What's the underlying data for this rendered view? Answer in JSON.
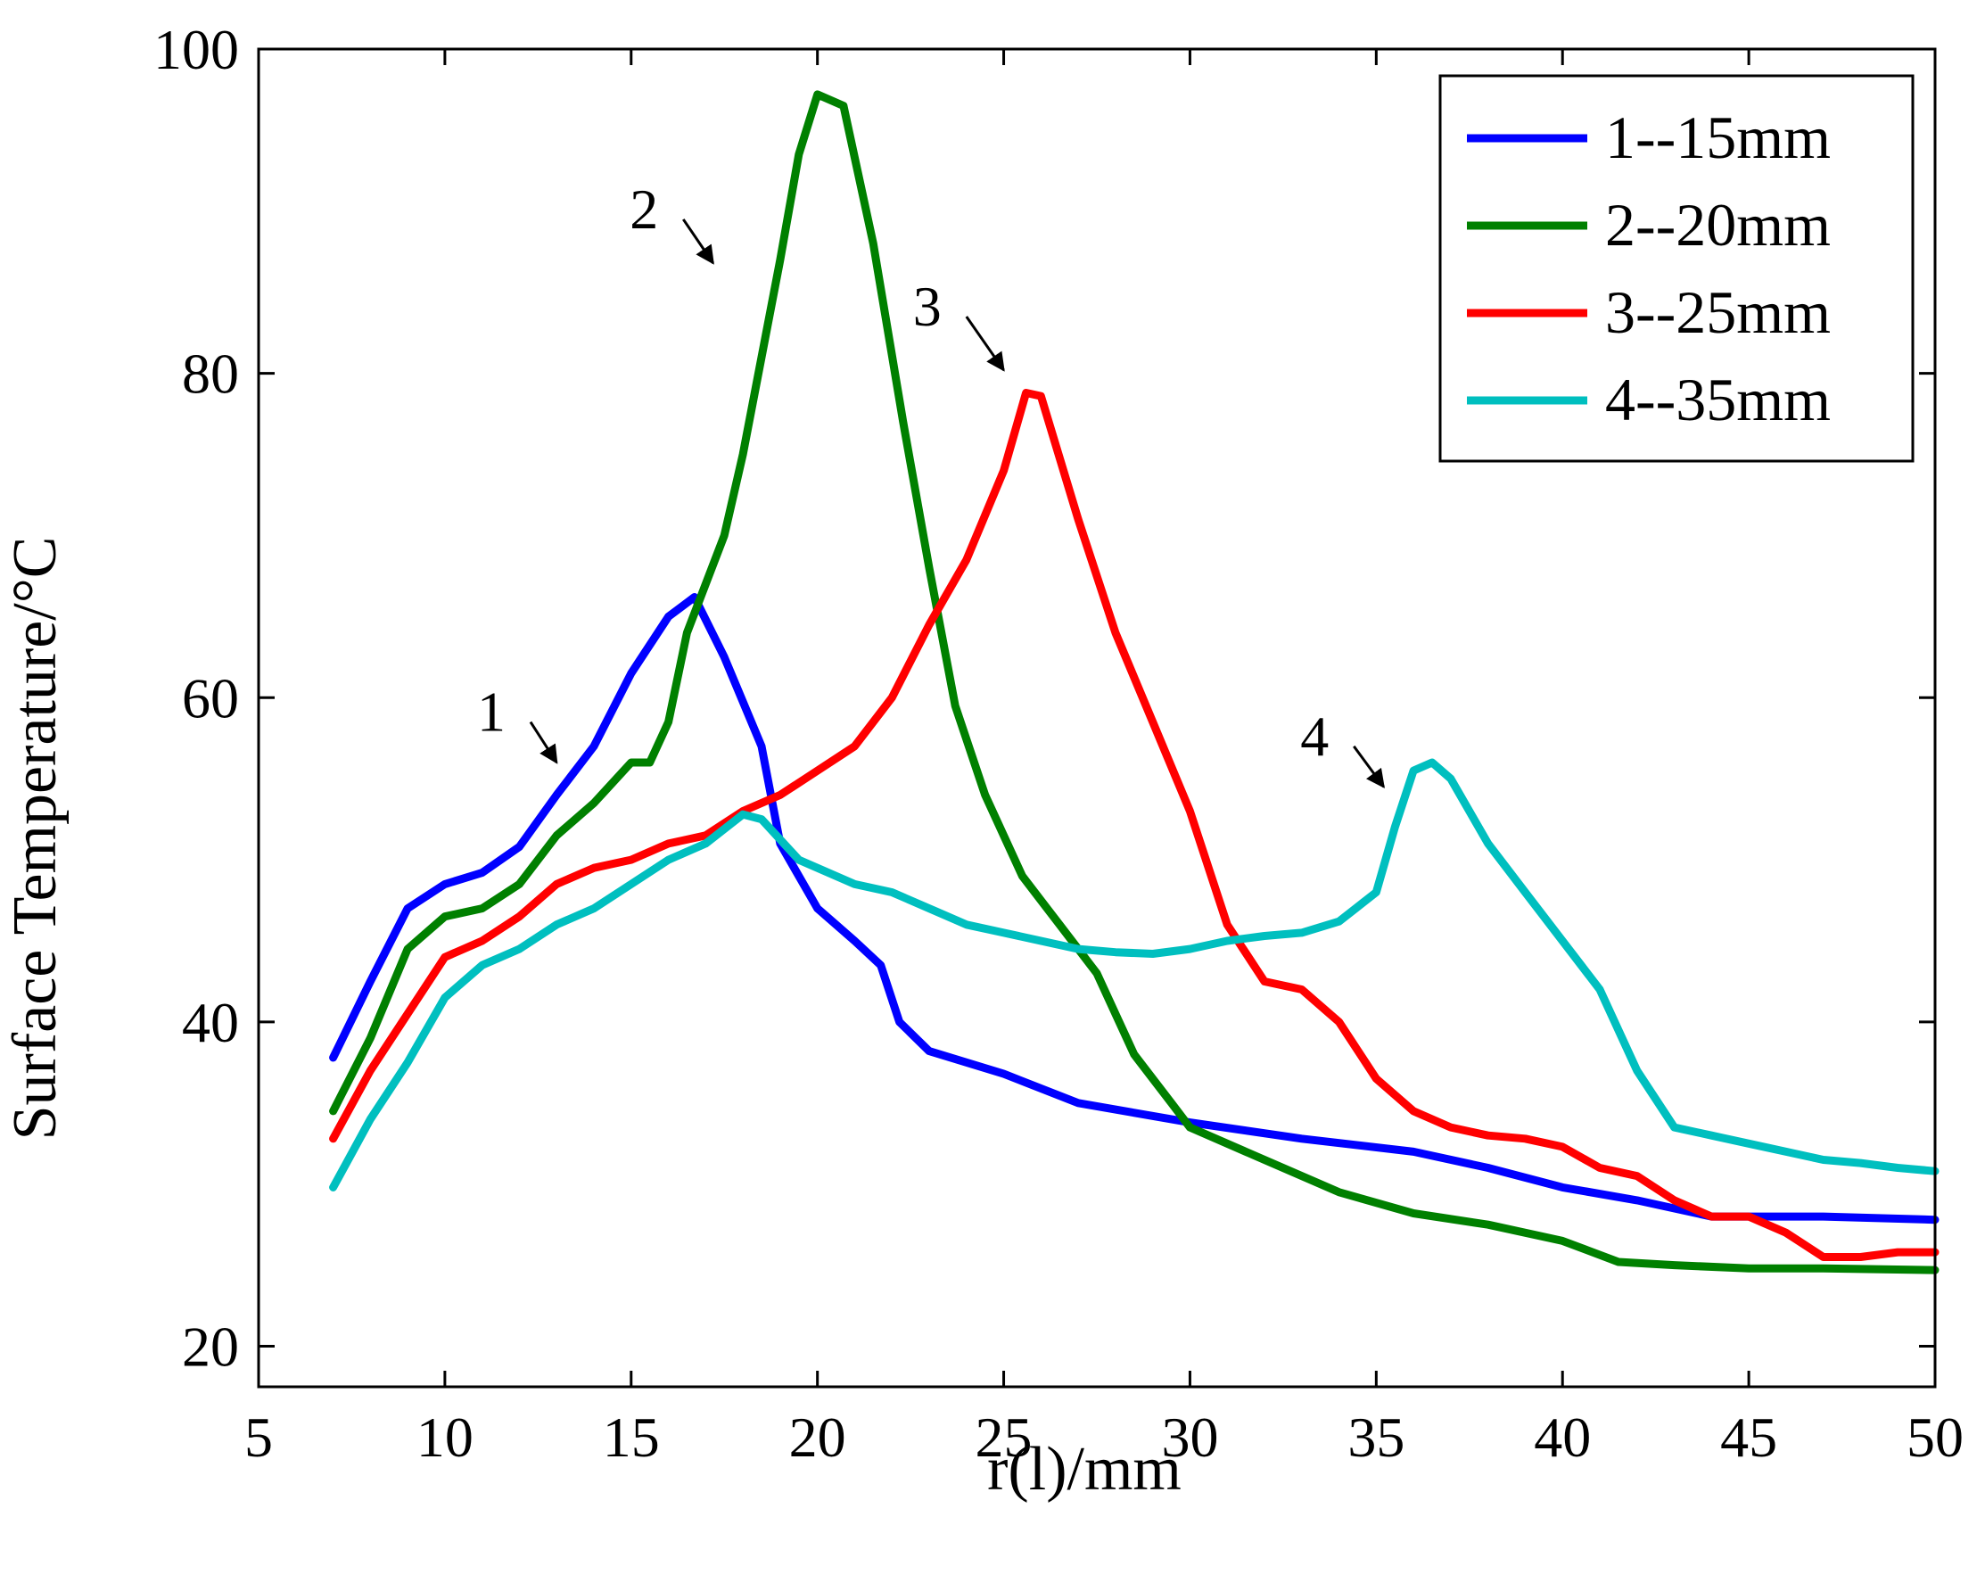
{
  "chart_data": {
    "type": "line",
    "title": "",
    "xlabel": "r(l)/mm",
    "ylabel": "Surface Temperature/°C",
    "xlim": [
      5,
      50
    ],
    "ylim": [
      17.5,
      100
    ],
    "xticks": [
      5,
      10,
      15,
      20,
      25,
      30,
      35,
      40,
      45,
      50
    ],
    "yticks": [
      20,
      40,
      60,
      80,
      100
    ],
    "grid": false,
    "legend_position": "top-right",
    "series": [
      {
        "name": "1--15mm",
        "color": "#0000ff",
        "points": [
          [
            7,
            37.8
          ],
          [
            8,
            42.5
          ],
          [
            9,
            47
          ],
          [
            10,
            48.5
          ],
          [
            11,
            49.2
          ],
          [
            12,
            50.8
          ],
          [
            13,
            54
          ],
          [
            14,
            57
          ],
          [
            15,
            61.5
          ],
          [
            16,
            65
          ],
          [
            16.7,
            66.2
          ],
          [
            17.5,
            62.5
          ],
          [
            18.5,
            57
          ],
          [
            19,
            51
          ],
          [
            20,
            47
          ],
          [
            21,
            45
          ],
          [
            21.7,
            43.5
          ],
          [
            22.2,
            40
          ],
          [
            23,
            38.2
          ],
          [
            25,
            36.8
          ],
          [
            27,
            35
          ],
          [
            30,
            33.8
          ],
          [
            33,
            32.8
          ],
          [
            36,
            32
          ],
          [
            38,
            31
          ],
          [
            40,
            29.8
          ],
          [
            42,
            29
          ],
          [
            44,
            28
          ],
          [
            47,
            28
          ],
          [
            50,
            27.8
          ]
        ]
      },
      {
        "name": "2--20mm",
        "color": "#008000",
        "points": [
          [
            7,
            34.5
          ],
          [
            8,
            39
          ],
          [
            9,
            44.5
          ],
          [
            10,
            46.5
          ],
          [
            11,
            47
          ],
          [
            12,
            48.5
          ],
          [
            13,
            51.5
          ],
          [
            14,
            53.5
          ],
          [
            15,
            56
          ],
          [
            15.5,
            56
          ],
          [
            16,
            58.5
          ],
          [
            16.5,
            64
          ],
          [
            17.5,
            70
          ],
          [
            18,
            75
          ],
          [
            18.5,
            81
          ],
          [
            19,
            87
          ],
          [
            19.5,
            93.5
          ],
          [
            20,
            97.2
          ],
          [
            20.7,
            96.5
          ],
          [
            21.5,
            88
          ],
          [
            22.3,
            77
          ],
          [
            23,
            68
          ],
          [
            23.7,
            59.5
          ],
          [
            24.5,
            54
          ],
          [
            25.5,
            49
          ],
          [
            26.5,
            46
          ],
          [
            27.5,
            43
          ],
          [
            28.5,
            38
          ],
          [
            29.5,
            35
          ],
          [
            30,
            33.5
          ],
          [
            32,
            31.5
          ],
          [
            34,
            29.5
          ],
          [
            36,
            28.2
          ],
          [
            38,
            27.5
          ],
          [
            40,
            26.5
          ],
          [
            41.5,
            25.2
          ],
          [
            43,
            25
          ],
          [
            45,
            24.8
          ],
          [
            47,
            24.8
          ],
          [
            50,
            24.7
          ]
        ]
      },
      {
        "name": "3--25mm",
        "color": "#ff0000",
        "points": [
          [
            7,
            32.8
          ],
          [
            8,
            37
          ],
          [
            9,
            40.5
          ],
          [
            10,
            44
          ],
          [
            11,
            45
          ],
          [
            12,
            46.5
          ],
          [
            13,
            48.5
          ],
          [
            14,
            49.5
          ],
          [
            15,
            50
          ],
          [
            16,
            51
          ],
          [
            17,
            51.5
          ],
          [
            18,
            53
          ],
          [
            19,
            54
          ],
          [
            20,
            55.5
          ],
          [
            21,
            57
          ],
          [
            22,
            60
          ],
          [
            23,
            64.5
          ],
          [
            24,
            68.5
          ],
          [
            25,
            74
          ],
          [
            25.6,
            78.8
          ],
          [
            26,
            78.6
          ],
          [
            27,
            71
          ],
          [
            28,
            64
          ],
          [
            29,
            58.5
          ],
          [
            30,
            53
          ],
          [
            31,
            46
          ],
          [
            32,
            42.5
          ],
          [
            33,
            42
          ],
          [
            34,
            40
          ],
          [
            35,
            36.5
          ],
          [
            36,
            34.5
          ],
          [
            37,
            33.5
          ],
          [
            38,
            33
          ],
          [
            39,
            32.8
          ],
          [
            40,
            32.3
          ],
          [
            41,
            31
          ],
          [
            42,
            30.5
          ],
          [
            43,
            29
          ],
          [
            44,
            28
          ],
          [
            45,
            28
          ],
          [
            46,
            27
          ],
          [
            47,
            25.5
          ],
          [
            48,
            25.5
          ],
          [
            49,
            25.8
          ],
          [
            50,
            25.8
          ]
        ]
      },
      {
        "name": "4--35mm",
        "color": "#00bfbf",
        "points": [
          [
            7,
            29.8
          ],
          [
            8,
            34
          ],
          [
            9,
            37.5
          ],
          [
            10,
            41.5
          ],
          [
            11,
            43.5
          ],
          [
            12,
            44.5
          ],
          [
            13,
            46
          ],
          [
            14,
            47
          ],
          [
            15,
            48.5
          ],
          [
            16,
            50
          ],
          [
            17,
            51
          ],
          [
            18,
            52.8
          ],
          [
            18.5,
            52.5
          ],
          [
            19.5,
            50
          ],
          [
            21,
            48.5
          ],
          [
            22,
            48
          ],
          [
            23,
            47
          ],
          [
            24,
            46
          ],
          [
            25,
            45.5
          ],
          [
            26,
            45
          ],
          [
            27,
            44.5
          ],
          [
            28,
            44.3
          ],
          [
            29,
            44.2
          ],
          [
            30,
            44.5
          ],
          [
            31,
            45
          ],
          [
            32,
            45.3
          ],
          [
            33,
            45.5
          ],
          [
            34,
            46.2
          ],
          [
            35,
            48
          ],
          [
            35.5,
            52
          ],
          [
            36,
            55.5
          ],
          [
            36.5,
            56
          ],
          [
            37,
            55
          ],
          [
            38,
            51
          ],
          [
            39,
            48
          ],
          [
            40,
            45
          ],
          [
            41,
            42
          ],
          [
            42,
            37
          ],
          [
            43,
            33.5
          ],
          [
            44,
            33
          ],
          [
            45,
            32.5
          ],
          [
            46,
            32
          ],
          [
            47,
            31.5
          ],
          [
            48,
            31.3
          ],
          [
            49,
            31
          ],
          [
            50,
            30.8
          ]
        ]
      }
    ],
    "annotations": [
      {
        "label": "1",
        "text_x": 5,
        "text_y": 5,
        "arrow_from": [
          12.3,
          58.5
        ],
        "arrow_to": [
          13,
          56
        ]
      },
      {
        "label": "2",
        "text_x": 5,
        "text_y": 5,
        "arrow_from": [
          16.4,
          89.5
        ],
        "arrow_to": [
          17.2,
          86.8
        ]
      },
      {
        "label": "3",
        "text_x": 5,
        "text_y": 5,
        "arrow_from": [
          24,
          83.5
        ],
        "arrow_to": [
          25,
          80.2
        ]
      },
      {
        "label": "4",
        "text_x": 5,
        "text_y": 5,
        "arrow_from": [
          34.4,
          57
        ],
        "arrow_to": [
          35.2,
          54.5
        ]
      }
    ]
  }
}
